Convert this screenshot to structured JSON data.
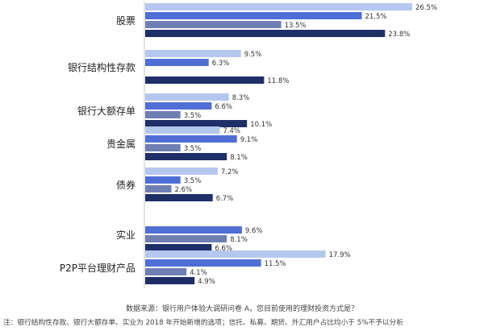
{
  "chart_data": {
    "type": "bar",
    "orientation": "horizontal",
    "categories": [
      "股票",
      "银行结构性存款",
      "银行大额存单",
      "贵金属",
      "债券",
      "实业",
      "P2P平台理财产品"
    ],
    "series": [
      {
        "color": "#b4c7ef",
        "values": [
          26.5,
          9.5,
          8.3,
          7.4,
          7.2,
          null,
          17.9
        ]
      },
      {
        "color": "#4f6fd6",
        "values": [
          21.5,
          6.3,
          6.6,
          9.1,
          3.5,
          9.6,
          11.5
        ]
      },
      {
        "color": "#6f7fb4",
        "values": [
          13.5,
          null,
          3.5,
          3.5,
          2.6,
          8.1,
          4.1
        ]
      },
      {
        "color": "#1e2f68",
        "values": [
          23.8,
          11.8,
          10.1,
          8.1,
          6.7,
          6.6,
          4.9
        ]
      }
    ],
    "value_suffix": "%",
    "xlim": [
      0,
      30
    ],
    "grid": false,
    "legend": "none"
  },
  "source_text": "数据来源：银行用户体验大调研问卷 A，您目前使用的理财投资方式是？",
  "note_text": "注：银行结构性存款、银行大额存单、实业为 2018 年开始新增的选项；信托、私募、期货、外汇用户占比均小于 5%不予以分析"
}
